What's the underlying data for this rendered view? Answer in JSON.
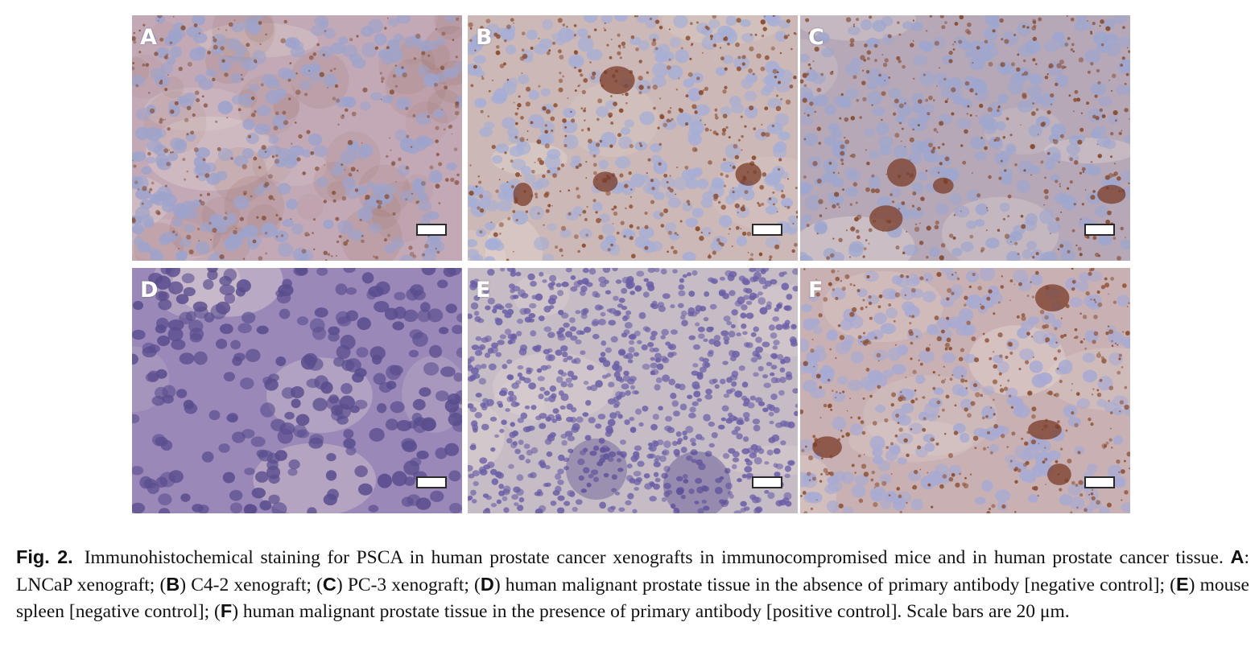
{
  "panels": [
    {
      "letter": "A",
      "bg": "#c3a9b6",
      "stain": "#8a5744",
      "nuclei": "#9da3cc",
      "stainLevel": 0.45,
      "diffuse": true
    },
    {
      "letter": "B",
      "bg": "#ccb8b6",
      "stain": "#8a4b2e",
      "nuclei": "#a6aed6",
      "stainLevel": 0.7,
      "diffuse": false
    },
    {
      "letter": "C",
      "bg": "#b6a8b6",
      "stain": "#864a30",
      "nuclei": "#9ea6cf",
      "stainLevel": 0.6,
      "diffuse": false
    },
    {
      "letter": "D",
      "bg": "#9988b8",
      "stain": "#6e5b96",
      "nuclei": "#5a4d8e",
      "stainLevel": 0,
      "diffuse": false
    },
    {
      "letter": "E",
      "bg": "#c6bcc6",
      "stain": "#6f62a6",
      "nuclei": "#6a5ea6",
      "stainLevel": 0,
      "diffuse": false
    },
    {
      "letter": "F",
      "bg": "#c9b1b3",
      "stain": "#8b4e32",
      "nuclei": "#a7aad3",
      "stainLevel": 0.65,
      "diffuse": false
    }
  ],
  "caption": {
    "fig_label": "Fig.  2.",
    "text_1": "Immunohistochemical staining for PSCA in human prostate cancer xenografts in immunocompromised mice and in human prostate cancer tissue. ",
    "a": "A",
    "text_a": ": LNCaP xenograft; (",
    "b": "B",
    "text_b": ") C4-2 xenograft; (",
    "c": "C",
    "text_c": ") PC-3 xenograft; (",
    "d": "D",
    "text_d": ") human malignant prostate tissue in the absence of primary antibody [negative control]; (",
    "e": "E",
    "text_e": ") mouse spleen [negative control]; (",
    "f": "F",
    "text_f": ") human malignant prostate tissue in the presence of primary antibody [positive control]. Scale bars are 20 μm."
  }
}
